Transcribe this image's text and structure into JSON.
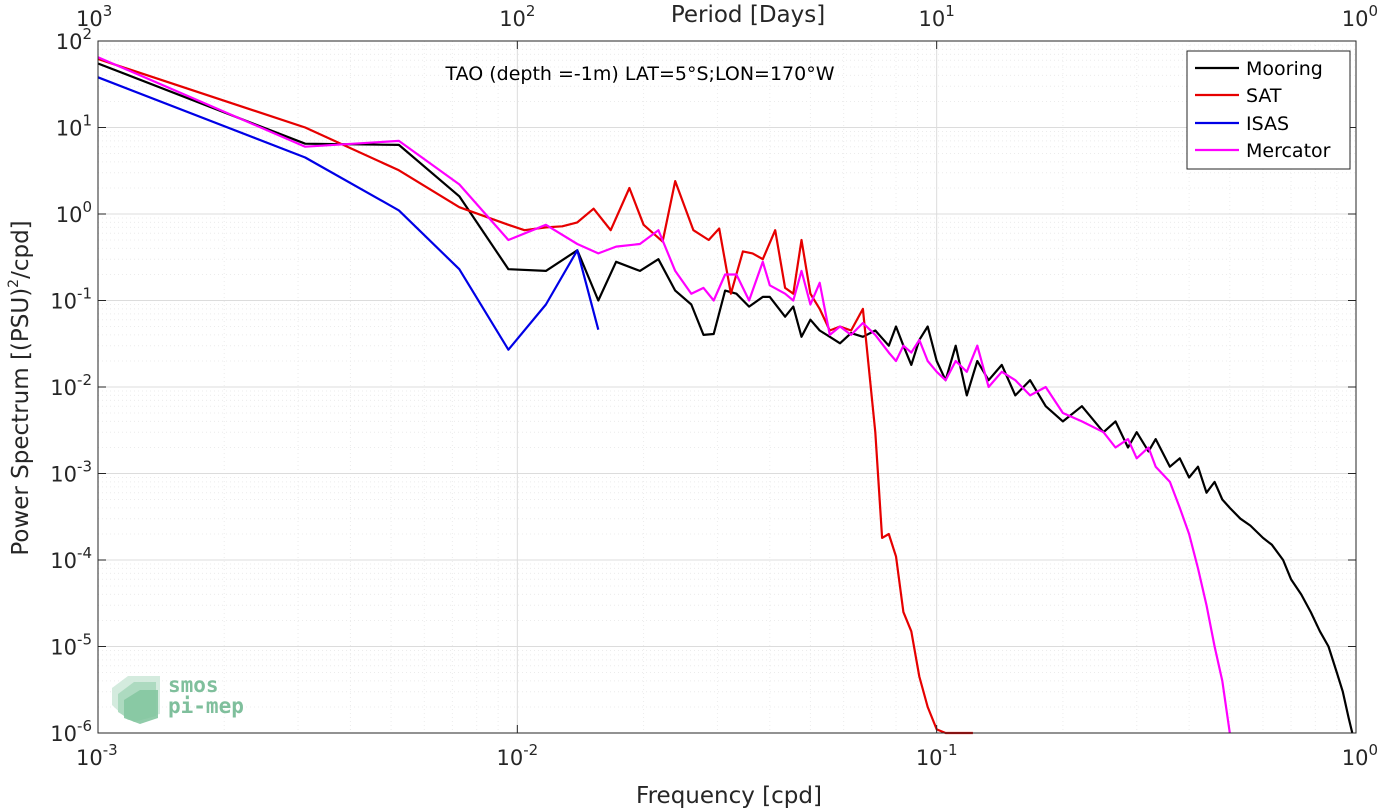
{
  "chart_data": {
    "type": "line",
    "title": "TAO (depth =-1m) LAT=5°S;LON=170°W",
    "xlabel": "Frequency [cpd]",
    "ylabel": "Power Spectrum [(PSU)²/cpd]",
    "ylabel_main": "Power Spectrum [(PSU)",
    "ylabel_sup": "2",
    "ylabel_tail": "/cpd]",
    "top_xlabel": "Period [Days]",
    "xscale": "log",
    "yscale": "log",
    "xlim": [
      0.001,
      1
    ],
    "ylim": [
      1e-06,
      100
    ],
    "grid": true,
    "legend_position": "top-right",
    "x_ticks": [
      {
        "base": "10",
        "exp": "-3",
        "value": 0.001
      },
      {
        "base": "10",
        "exp": "-2",
        "value": 0.01
      },
      {
        "base": "10",
        "exp": "-1",
        "value": 0.1
      },
      {
        "base": "10",
        "exp": "0",
        "value": 1
      }
    ],
    "top_ticks": [
      {
        "base": "10",
        "exp": "3",
        "value": 0.001
      },
      {
        "base": "10",
        "exp": "2",
        "value": 0.01
      },
      {
        "base": "10",
        "exp": "1",
        "value": 0.1
      },
      {
        "base": "10",
        "exp": "0",
        "value": 1
      }
    ],
    "y_ticks": [
      {
        "base": "10",
        "exp": "2",
        "value": 100
      },
      {
        "base": "10",
        "exp": "1",
        "value": 10
      },
      {
        "base": "10",
        "exp": "0",
        "value": 1
      },
      {
        "base": "10",
        "exp": "-1",
        "value": 0.1
      },
      {
        "base": "10",
        "exp": "-2",
        "value": 0.01
      },
      {
        "base": "10",
        "exp": "-3",
        "value": 0.001
      },
      {
        "base": "10",
        "exp": "-4",
        "value": 0.0001
      },
      {
        "base": "10",
        "exp": "-5",
        "value": 1e-05
      },
      {
        "base": "10",
        "exp": "-6",
        "value": 1e-06
      }
    ],
    "series": [
      {
        "name": "Mooring",
        "color": "#000000",
        "x": [
          0.001,
          0.00312,
          0.00522,
          0.00727,
          0.00952,
          0.0117,
          0.0139,
          0.0156,
          0.0172,
          0.0196,
          0.0217,
          0.0238,
          0.026,
          0.0278,
          0.0294,
          0.0313,
          0.0333,
          0.0357,
          0.0385,
          0.04,
          0.0435,
          0.0455,
          0.0476,
          0.05,
          0.0526,
          0.0556,
          0.0588,
          0.0625,
          0.0667,
          0.0714,
          0.0769,
          0.08,
          0.0833,
          0.087,
          0.0909,
          0.0952,
          0.1,
          0.105,
          0.111,
          0.118,
          0.125,
          0.133,
          0.143,
          0.154,
          0.167,
          0.182,
          0.2,
          0.222,
          0.25,
          0.267,
          0.286,
          0.3,
          0.32,
          0.333,
          0.36,
          0.38,
          0.4,
          0.42,
          0.44,
          0.46,
          0.48,
          0.5,
          0.53,
          0.56,
          0.6,
          0.63,
          0.67,
          0.7,
          0.74,
          0.78,
          0.82,
          0.86,
          0.9,
          0.93,
          0.96,
          0.98
        ],
        "y": [
          55,
          6.5,
          6.3,
          1.6,
          0.23,
          0.22,
          0.38,
          0.1,
          0.28,
          0.22,
          0.3,
          0.13,
          0.09,
          0.04,
          0.041,
          0.13,
          0.12,
          0.085,
          0.11,
          0.11,
          0.065,
          0.085,
          0.038,
          0.06,
          0.045,
          0.038,
          0.032,
          0.042,
          0.038,
          0.045,
          0.03,
          0.05,
          0.03,
          0.018,
          0.035,
          0.05,
          0.02,
          0.012,
          0.03,
          0.008,
          0.02,
          0.012,
          0.018,
          0.008,
          0.012,
          0.006,
          0.004,
          0.006,
          0.003,
          0.004,
          0.002,
          0.003,
          0.0018,
          0.0025,
          0.0012,
          0.0015,
          0.0009,
          0.0012,
          0.0006,
          0.0008,
          0.0005,
          0.0004,
          0.0003,
          0.00025,
          0.00018,
          0.00015,
          0.0001,
          6e-05,
          4e-05,
          2.5e-05,
          1.5e-05,
          1e-05,
          5e-06,
          3e-06,
          1.5e-06,
          1e-06
        ]
      },
      {
        "name": "SAT",
        "color": "#e60000",
        "x": [
          0.001,
          0.00312,
          0.00522,
          0.00727,
          0.00952,
          0.0104,
          0.0117,
          0.0128,
          0.0139,
          0.0152,
          0.0167,
          0.0185,
          0.02,
          0.0222,
          0.0238,
          0.0263,
          0.0286,
          0.0303,
          0.0323,
          0.0345,
          0.0364,
          0.0385,
          0.0412,
          0.0435,
          0.0455,
          0.0476,
          0.05,
          0.0526,
          0.0556,
          0.0588,
          0.0625,
          0.0667,
          0.0714,
          0.0741,
          0.0769,
          0.08,
          0.0833,
          0.087,
          0.0909,
          0.0952,
          0.1,
          0.105,
          0.111,
          0.118,
          0.122
        ],
        "y": [
          62,
          10,
          3.2,
          1.2,
          0.75,
          0.65,
          0.7,
          0.72,
          0.8,
          1.15,
          0.65,
          2.0,
          0.75,
          0.48,
          2.4,
          0.65,
          0.5,
          0.68,
          0.12,
          0.37,
          0.35,
          0.3,
          0.65,
          0.14,
          0.12,
          0.5,
          0.12,
          0.08,
          0.045,
          0.05,
          0.045,
          0.08,
          0.003,
          0.00018,
          0.0002,
          0.00011,
          2.5e-05,
          1.5e-05,
          4.5e-06,
          2e-06,
          1.1e-06,
          1e-06,
          1e-06,
          1e-06,
          1e-06
        ],
        "x_override": [
          0.001,
          0.00312,
          0.00522,
          0.00727,
          0.00952,
          0.0104,
          0.0117,
          0.0128,
          0.0139,
          0.0152,
          0.0167,
          0.0185,
          0.02,
          0.0222,
          0.0238,
          0.0263,
          0.0286,
          0.0303,
          0.0323,
          0.0345,
          0.0364,
          0.0385,
          0.0412,
          0.0435,
          0.0455,
          0.0476,
          0.05,
          0.0526,
          0.0556,
          0.0588,
          0.0625,
          0.0667,
          0.0714,
          0.0741,
          0.0769,
          0.08,
          0.0833,
          0.087,
          0.0909,
          0.0952,
          0.1,
          0.105,
          0.111,
          0.118,
          0.122
        ]
      },
      {
        "name": "ISAS",
        "color": "#0000e6",
        "x": [
          0.001,
          0.00312,
          0.00522,
          0.00727,
          0.00952,
          0.0117,
          0.0139,
          0.0156
        ],
        "y": [
          38,
          4.5,
          1.1,
          0.23,
          0.027,
          0.09,
          0.38,
          0.046
        ]
      },
      {
        "name": "Mercator",
        "color": "#ff00ff",
        "x": [
          0.001,
          0.00312,
          0.00522,
          0.00727,
          0.00952,
          0.0117,
          0.0139,
          0.0156,
          0.0172,
          0.0196,
          0.0217,
          0.0238,
          0.026,
          0.0278,
          0.0294,
          0.0313,
          0.0333,
          0.0357,
          0.0385,
          0.04,
          0.0435,
          0.0455,
          0.0476,
          0.05,
          0.0526,
          0.0556,
          0.0588,
          0.0625,
          0.0667,
          0.0714,
          0.0769,
          0.08,
          0.0833,
          0.087,
          0.0909,
          0.0952,
          0.1,
          0.105,
          0.111,
          0.118,
          0.125,
          0.133,
          0.143,
          0.154,
          0.167,
          0.182,
          0.2,
          0.222,
          0.25,
          0.267,
          0.286,
          0.3,
          0.32,
          0.333,
          0.36,
          0.38,
          0.4,
          0.42,
          0.44,
          0.46,
          0.48,
          0.5
        ],
        "y": [
          65,
          6.0,
          7.0,
          2.2,
          0.5,
          0.75,
          0.45,
          0.35,
          0.42,
          0.45,
          0.65,
          0.22,
          0.12,
          0.14,
          0.1,
          0.2,
          0.2,
          0.1,
          0.28,
          0.15,
          0.12,
          0.1,
          0.22,
          0.09,
          0.16,
          0.04,
          0.05,
          0.04,
          0.055,
          0.04,
          0.025,
          0.02,
          0.03,
          0.025,
          0.035,
          0.02,
          0.015,
          0.012,
          0.02,
          0.015,
          0.03,
          0.01,
          0.015,
          0.012,
          0.008,
          0.01,
          0.005,
          0.004,
          0.003,
          0.002,
          0.0025,
          0.0015,
          0.002,
          0.0012,
          0.0008,
          0.0004,
          0.0002,
          8e-05,
          3e-05,
          1e-05,
          4e-06,
          1e-06
        ]
      }
    ]
  },
  "logo": {
    "line1": "smos",
    "line2": "pi-mep"
  }
}
